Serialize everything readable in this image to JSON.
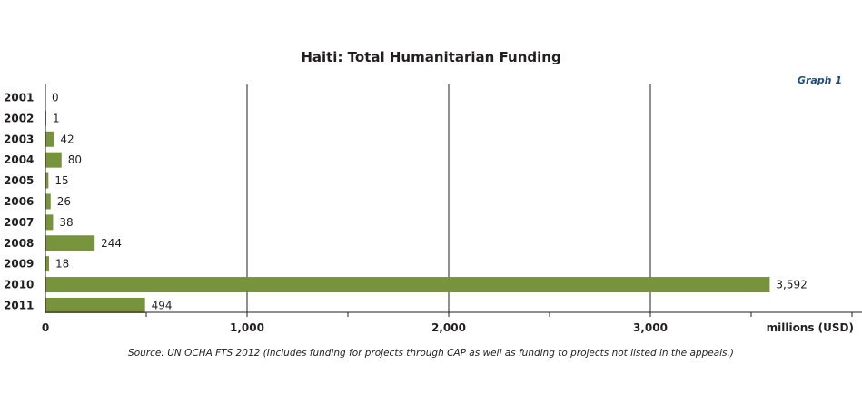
{
  "chart_data": {
    "type": "bar",
    "orientation": "horizontal",
    "title": "Haiti: Total Humanitarian Funding",
    "graph_label": "Graph 1",
    "categories": [
      "2001",
      "2002",
      "2003",
      "2004",
      "2005",
      "2006",
      "2007",
      "2008",
      "2009",
      "2010",
      "2011"
    ],
    "values": [
      0,
      1,
      42,
      80,
      15,
      26,
      38,
      244,
      18,
      3592,
      494
    ],
    "value_labels": [
      "0",
      "1",
      "42",
      "80",
      "15",
      "26",
      "38",
      "244",
      "18",
      "3,592",
      "494"
    ],
    "xlim": [
      0,
      4000
    ],
    "x_ticks": [
      0,
      1000,
      2000,
      3000
    ],
    "x_tick_labels": [
      "0",
      "1,000",
      "2,000",
      "3,000"
    ],
    "xlabel": "millions (USD)",
    "gridlines": true,
    "bar_color": "#77933c",
    "source": "Source: UN OCHA FTS 2012 (Includes funding for projects through CAP as well as funding to projects not listed in the appeals.)"
  }
}
